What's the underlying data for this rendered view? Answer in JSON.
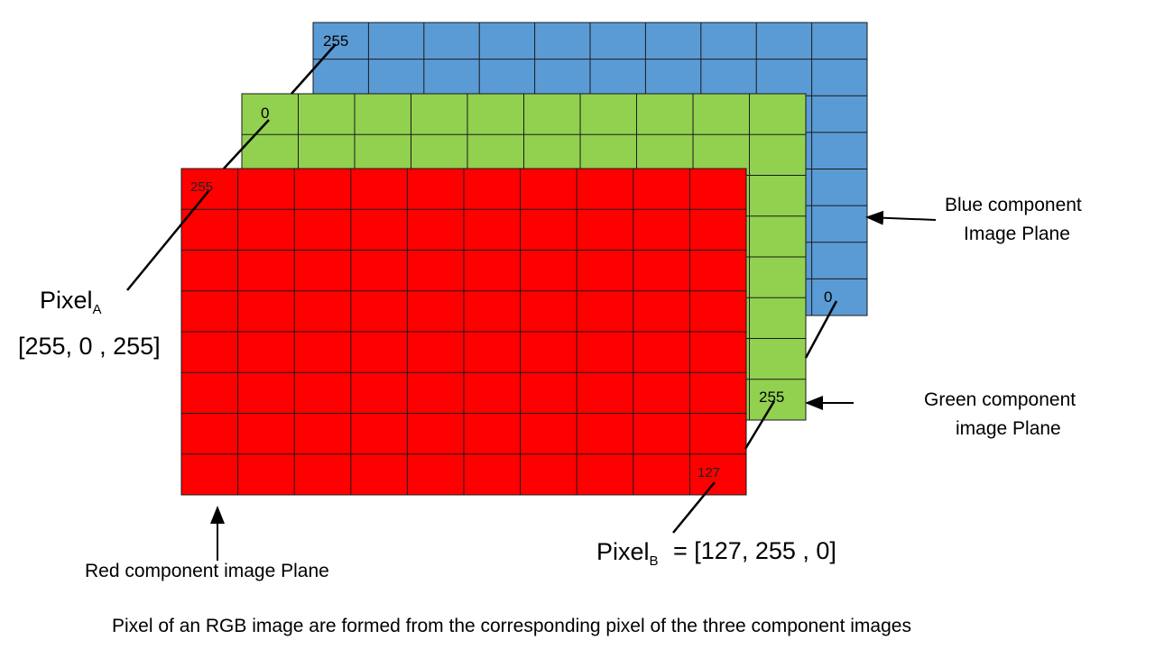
{
  "planes": {
    "blue": {
      "color": "#5b9bd5",
      "rows": 8,
      "cols": 10,
      "label_line1": "Blue component",
      "label_line2": "Image  Plane",
      "val_a": "255",
      "val_b": "0"
    },
    "green": {
      "color": "#92d050",
      "rows": 8,
      "cols": 10,
      "label_line1": "Green component",
      "label_line2": "image Plane",
      "val_a": "0",
      "val_b": "255"
    },
    "red": {
      "color": "#ff0000",
      "rows": 8,
      "cols": 10,
      "label": "Red component image Plane",
      "val_a": "255",
      "val_b": "127"
    }
  },
  "pixel_a": {
    "name": "Pixel",
    "sub": "A",
    "value": "[255, 0 , 255]"
  },
  "pixel_b": {
    "name": "Pixel",
    "sub": "B",
    "value": "=  [127, 255 , 0]"
  },
  "caption": "Pixel of an RGB image are formed from the corresponding pixel of the three component images"
}
